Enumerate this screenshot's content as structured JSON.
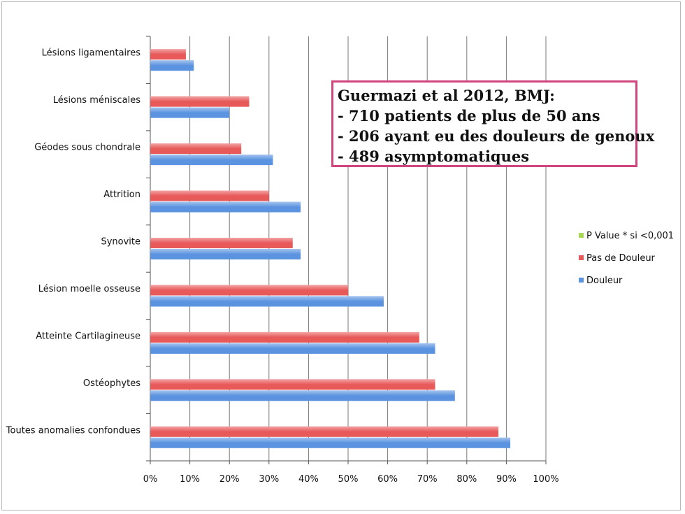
{
  "chart_data": {
    "type": "bar",
    "orientation": "horizontal",
    "categories": [
      "Lésions ligamentaires",
      "Lésions méniscales",
      "Géodes sous chondrale",
      "Attrition",
      "Synovite",
      "Lésion moelle osseuse",
      "Atteinte Cartilagineuse",
      "Ostéophytes",
      "Toutes anomalies confondues"
    ],
    "series": [
      {
        "name": "Pas de Douleur",
        "color": "#e8595a",
        "values": [
          0.09,
          0.25,
          0.23,
          0.3,
          0.36,
          0.5,
          0.68,
          0.72,
          0.88
        ]
      },
      {
        "name": "Douleur",
        "color": "#5b93e0",
        "values": [
          0.11,
          0.2,
          0.31,
          0.38,
          0.38,
          0.59,
          0.72,
          0.77,
          0.91
        ]
      }
    ],
    "xlim": [
      0,
      1
    ],
    "x_ticks": [
      "0%",
      "10%",
      "20%",
      "30%",
      "40%",
      "50%",
      "60%",
      "70%",
      "80%",
      "90%",
      "100%"
    ],
    "grid": "vertical",
    "legend": {
      "placement": "right",
      "entries": [
        {
          "label": "P Value * si <0,001",
          "color": "#a6d854"
        },
        {
          "label": "Pas de Douleur",
          "color": "#e8595a"
        },
        {
          "label": "Douleur",
          "color": "#5b93e0"
        }
      ]
    },
    "annotation": {
      "lines": [
        "Guermazi et al 2012, BMJ:",
        "- 710 patients de plus de 50 ans",
        "- 206 ayant eu des douleurs de genoux",
        "- 489 asymptomatiques"
      ],
      "border_color": "#d0457e"
    }
  }
}
